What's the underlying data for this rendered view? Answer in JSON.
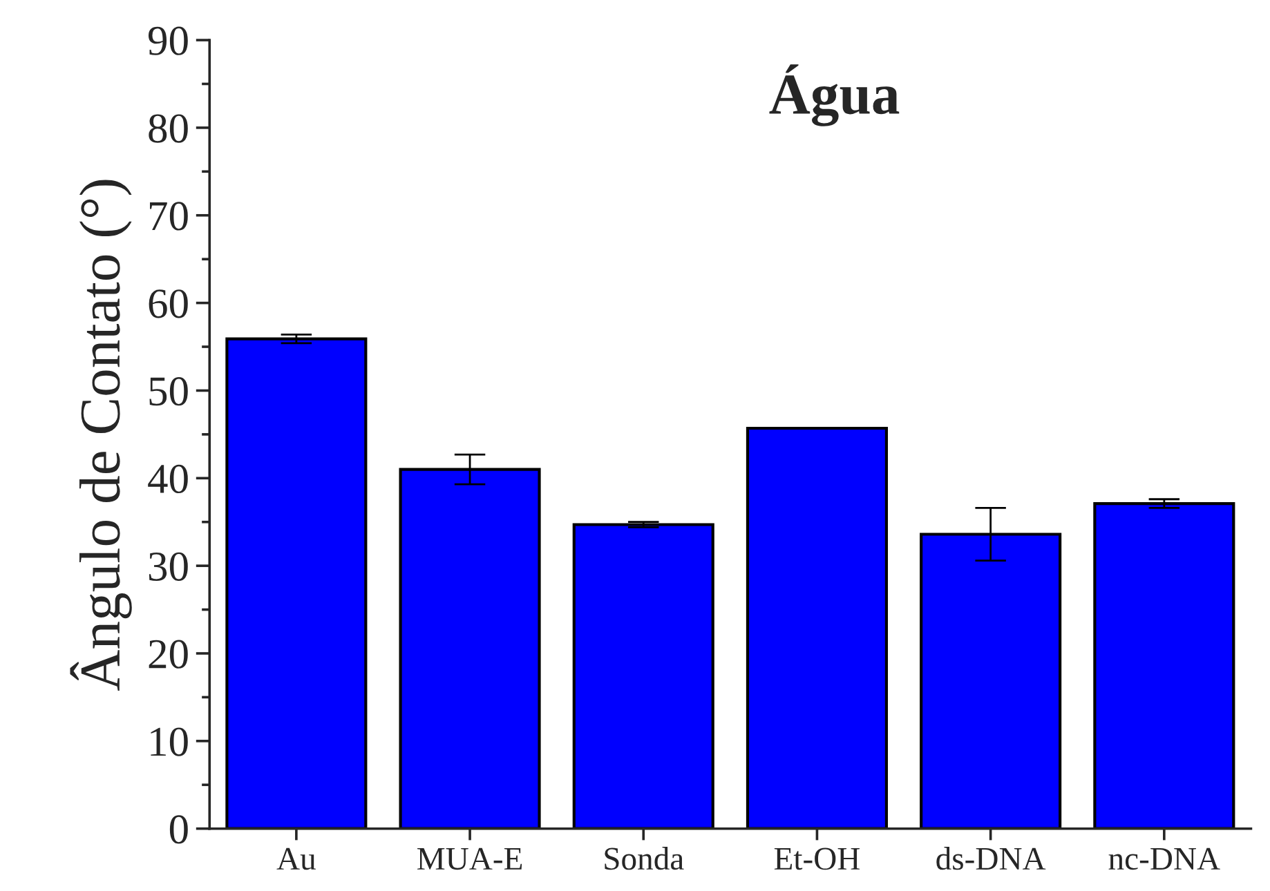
{
  "chart_data": {
    "type": "bar",
    "title": "Água",
    "ylabel": "Ângulo de Contato (°)",
    "categories": [
      "Au",
      "MUA-E",
      "Sonda",
      "Et-OH",
      "ds-DNA",
      "nc-DNA"
    ],
    "values": [
      55.9,
      41.0,
      34.7,
      45.7,
      33.6,
      37.1
    ],
    "errors": [
      0.5,
      1.7,
      0.3,
      0,
      3.0,
      0.5
    ],
    "color": "#0000ff",
    "ylim": [
      0,
      90
    ],
    "yticks": [
      0,
      10,
      20,
      30,
      40,
      50,
      60,
      70,
      80,
      90
    ],
    "grid": false
  }
}
